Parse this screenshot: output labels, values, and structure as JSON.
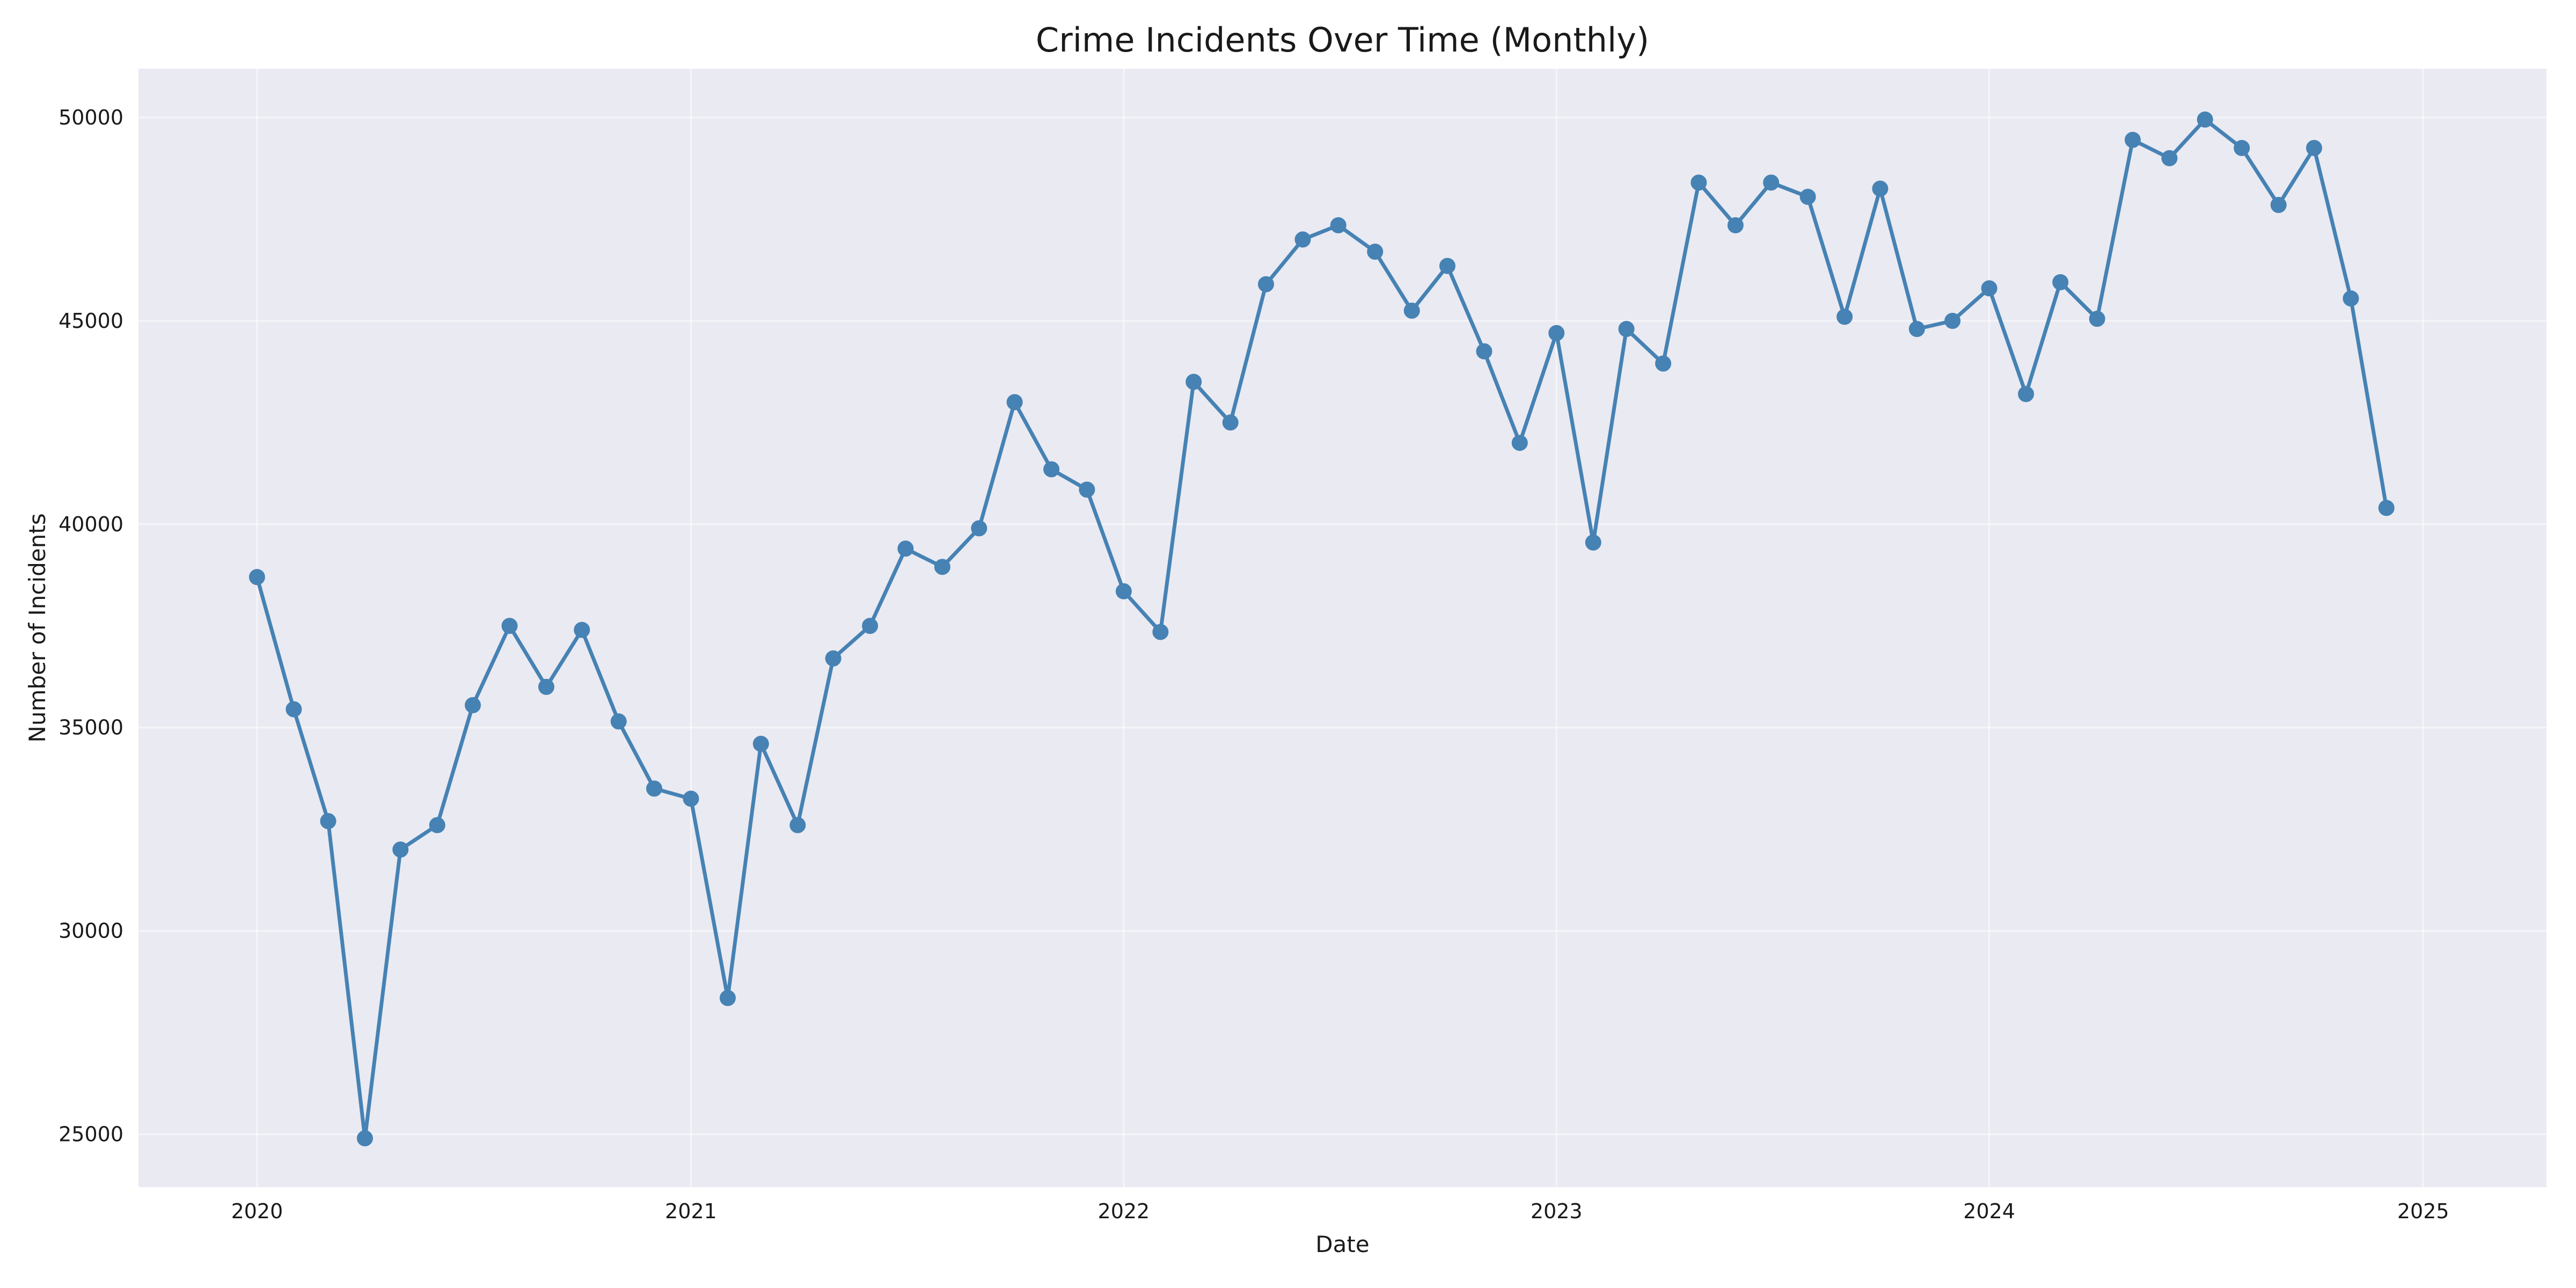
{
  "chart_data": {
    "type": "line",
    "title": "Crime Incidents Over Time (Monthly)",
    "xlabel": "Date",
    "ylabel": "Number of Incidents",
    "x_axis_type": "date",
    "xlim": [
      "2019-09-23",
      "2025-04-15"
    ],
    "ylim": [
      23700,
      51200
    ],
    "x_ticks": [
      {
        "date": "2020-01-01",
        "label": "2020"
      },
      {
        "date": "2021-01-01",
        "label": "2021"
      },
      {
        "date": "2022-01-01",
        "label": "2022"
      },
      {
        "date": "2023-01-01",
        "label": "2023"
      },
      {
        "date": "2024-01-01",
        "label": "2024"
      },
      {
        "date": "2025-01-01",
        "label": "2025"
      }
    ],
    "y_ticks": [
      25000,
      30000,
      35000,
      40000,
      45000,
      50000
    ],
    "grid": true,
    "colors": {
      "plot_background": "#eaeaf2",
      "line": "#4682b4",
      "marker": "#4682b4"
    },
    "series": [
      {
        "x": [
          "2020-01-01",
          "2020-02-01",
          "2020-03-01",
          "2020-04-01",
          "2020-05-01",
          "2020-06-01",
          "2020-07-01",
          "2020-08-01",
          "2020-09-01",
          "2020-10-01",
          "2020-11-01",
          "2020-12-01",
          "2021-01-01",
          "2021-02-01",
          "2021-03-01",
          "2021-04-01",
          "2021-05-01",
          "2021-06-01",
          "2021-07-01",
          "2021-08-01",
          "2021-09-01",
          "2021-10-01",
          "2021-11-01",
          "2021-12-01",
          "2022-01-01",
          "2022-02-01",
          "2022-03-01",
          "2022-04-01",
          "2022-05-01",
          "2022-06-01",
          "2022-07-01",
          "2022-08-01",
          "2022-09-01",
          "2022-10-01",
          "2022-11-01",
          "2022-12-01",
          "2023-01-01",
          "2023-02-01",
          "2023-03-01",
          "2023-04-01",
          "2023-05-01",
          "2023-06-01",
          "2023-07-01",
          "2023-08-01",
          "2023-09-01",
          "2023-10-01",
          "2023-11-01",
          "2023-12-01",
          "2024-01-01",
          "2024-02-01",
          "2024-03-01",
          "2024-04-01",
          "2024-05-01",
          "2024-06-01",
          "2024-07-01",
          "2024-08-01",
          "2024-09-01",
          "2024-10-01",
          "2024-11-01",
          "2024-12-01"
        ],
        "values": [
          38700,
          35450,
          32700,
          24900,
          32000,
          32600,
          35550,
          37500,
          36000,
          37400,
          35150,
          33500,
          33250,
          28350,
          34600,
          32600,
          36700,
          37500,
          39400,
          38950,
          39900,
          43000,
          41350,
          40850,
          38350,
          37350,
          43500,
          42500,
          45900,
          47000,
          47350,
          46700,
          45250,
          46350,
          44250,
          42000,
          44700,
          39550,
          44800,
          43950,
          48400,
          47350,
          48400,
          48050,
          45100,
          48250,
          44800,
          45000,
          45800,
          43200,
          45950,
          45050,
          49450,
          49000,
          49950,
          49250,
          47850,
          49250,
          45550,
          40400
        ]
      }
    ]
  }
}
